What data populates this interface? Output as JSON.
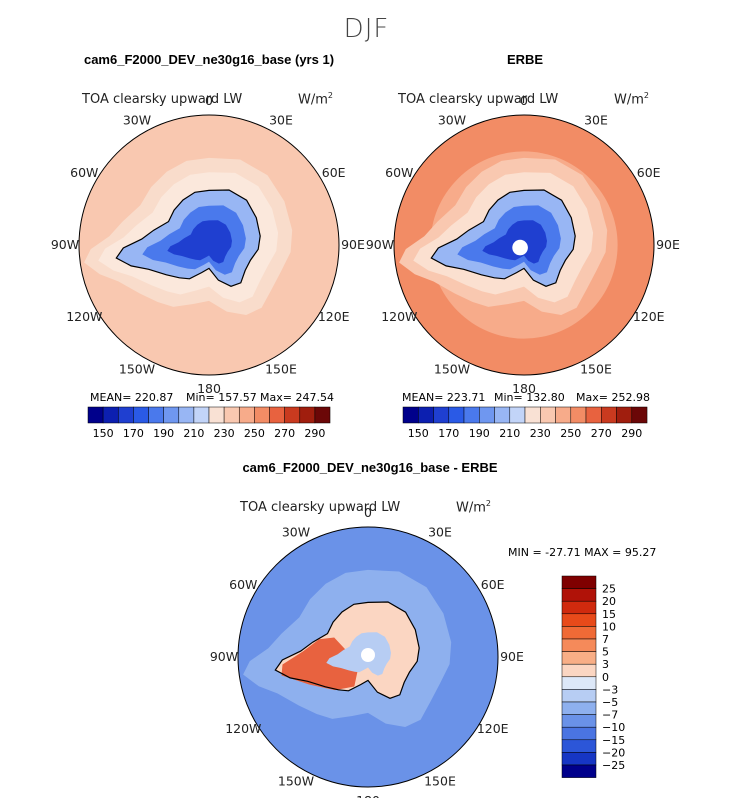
{
  "season": "DJF",
  "panels": [
    {
      "title": "cam6_F2000_DEV_ne30g16_base (yrs 1)",
      "variable": "TOA clearsky upward LW",
      "units_base": "W/m",
      "units_exp": "2",
      "stats": {
        "mean": "MEAN= 220.87",
        "min": "Min= 157.57",
        "max": "Max= 247.54"
      }
    },
    {
      "title": "ERBE",
      "variable": "TOA clearsky upward LW",
      "units_base": "W/m",
      "units_exp": "2",
      "stats": {
        "mean": "MEAN= 223.71",
        "min": "Min= 132.80",
        "max": "Max= 252.98"
      }
    },
    {
      "title": "cam6_F2000_DEV_ne30g16_base - ERBE",
      "variable": "TOA clearsky upward LW",
      "units_base": "W/m",
      "units_exp": "2",
      "stats": {
        "minmax": "MIN = -27.71 MAX =  95.27"
      }
    }
  ],
  "lon_labels": [
    "0",
    "30E",
    "60E",
    "90E",
    "120E",
    "150E",
    "180",
    "150W",
    "120W",
    "90W",
    "60W",
    "30W"
  ],
  "chart_data": [
    {
      "type": "heatmap",
      "projection": "south-polar-stereographic",
      "title": "cam6_F2000_DEV_ne30g16_base (yrs 1)",
      "colorbar": {
        "orientation": "horizontal",
        "levels": [
          150,
          160,
          170,
          180,
          190,
          200,
          210,
          220,
          230,
          240,
          250,
          260,
          270,
          280,
          290
        ],
        "tick_labels": [
          "150",
          "170",
          "190",
          "210",
          "230",
          "250",
          "270",
          "290"
        ],
        "colors": [
          "#00008b",
          "#0c1fb0",
          "#1f3fd0",
          "#2a5ae6",
          "#4a79ec",
          "#6f97f0",
          "#98b6f4",
          "#c2d4f8",
          "#f9e1d4",
          "#f9c8b0",
          "#f7ab8a",
          "#f28c65",
          "#e8623f",
          "#c93a1f",
          "#a01e0e",
          "#6b0707"
        ]
      },
      "stats": {
        "mean": 220.87,
        "min": 157.57,
        "max": 247.54
      }
    },
    {
      "type": "heatmap",
      "projection": "south-polar-stereographic",
      "title": "ERBE",
      "colorbar": {
        "orientation": "horizontal",
        "levels": [
          150,
          160,
          170,
          180,
          190,
          200,
          210,
          220,
          230,
          240,
          250,
          260,
          270,
          280,
          290
        ],
        "tick_labels": [
          "150",
          "170",
          "190",
          "210",
          "230",
          "250",
          "270",
          "290"
        ],
        "colors": [
          "#00008b",
          "#0c1fb0",
          "#1f3fd0",
          "#2a5ae6",
          "#4a79ec",
          "#6f97f0",
          "#98b6f4",
          "#c2d4f8",
          "#f9e1d4",
          "#f9c8b0",
          "#f7ab8a",
          "#f28c65",
          "#e8623f",
          "#c93a1f",
          "#a01e0e",
          "#6b0707"
        ]
      },
      "stats": {
        "mean": 223.71,
        "min": 132.8,
        "max": 252.98
      }
    },
    {
      "type": "heatmap",
      "projection": "south-polar-stereographic",
      "title": "cam6_F2000_DEV_ne30g16_base - ERBE",
      "colorbar": {
        "orientation": "vertical",
        "levels": [
          -25,
          -20,
          -15,
          -10,
          -7,
          -5,
          -3,
          0,
          3,
          5,
          7,
          10,
          15,
          20,
          25
        ],
        "tick_labels": [
          "25",
          "20",
          "15",
          "10",
          "7",
          "5",
          "3",
          "0",
          "−3",
          "−5",
          "−7",
          "−10",
          "−15",
          "−20",
          "−25"
        ],
        "colors": [
          "#7f0000",
          "#b01208",
          "#d02a0e",
          "#e84a1a",
          "#f06a36",
          "#f58a5a",
          "#f8ae86",
          "#fbd6c2",
          "#dde8f8",
          "#b7cdf3",
          "#8eb0ee",
          "#6a92e8",
          "#4a74e2",
          "#2c56d8",
          "#1636c4",
          "#00008b"
        ]
      },
      "stats": {
        "min": -27.71,
        "max": 95.27
      }
    }
  ]
}
